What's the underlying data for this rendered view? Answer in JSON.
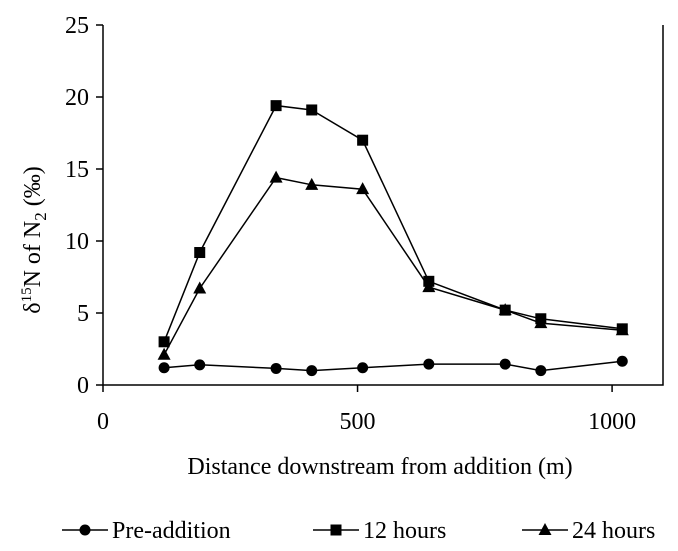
{
  "chart_data": {
    "type": "line",
    "xlabel": "Distance downstream from addition (m)",
    "ylabel": {
      "delta": "δ",
      "superscript": "15",
      "main": "N of N",
      "subscript": "2",
      "unit": " (‰)"
    },
    "xlim": [
      0,
      1100
    ],
    "ylim": [
      0,
      25
    ],
    "xticks": [
      0,
      500,
      1000
    ],
    "yticks": [
      0,
      5,
      10,
      15,
      20,
      25
    ],
    "xtick_labels": [
      "0",
      "500",
      "1000"
    ],
    "ytick_labels": [
      "0",
      "5",
      "10",
      "15",
      "20",
      "25"
    ],
    "grid": false,
    "legend_position": "bottom",
    "series": [
      {
        "name": "Pre-addition",
        "marker": "circle",
        "x": [
          120,
          190,
          340,
          410,
          510,
          640,
          790,
          860,
          1020
        ],
        "y": [
          1.2,
          1.4,
          1.15,
          1.0,
          1.2,
          1.45,
          1.45,
          1.0,
          1.65
        ]
      },
      {
        "name": "12 hours",
        "marker": "square",
        "x": [
          120,
          190,
          340,
          410,
          510,
          640,
          790,
          860,
          1020
        ],
        "y": [
          3.0,
          9.2,
          19.4,
          19.1,
          17.0,
          7.2,
          5.2,
          4.6,
          3.9
        ]
      },
      {
        "name": "24 hours",
        "marker": "triangle",
        "x": [
          120,
          190,
          340,
          410,
          510,
          640,
          790,
          860,
          1020
        ],
        "y": [
          2.1,
          6.7,
          14.4,
          13.9,
          13.6,
          6.8,
          5.2,
          4.3,
          3.8
        ]
      }
    ]
  }
}
